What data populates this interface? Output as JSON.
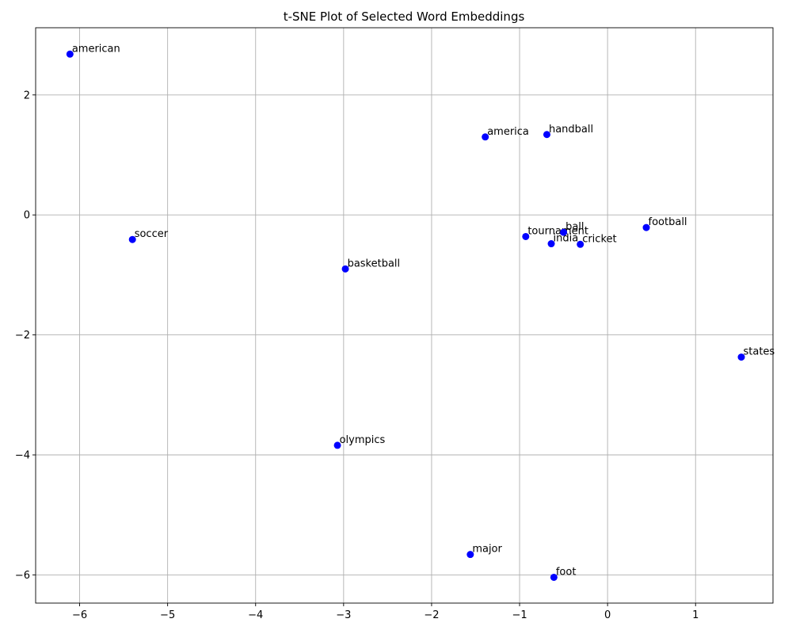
{
  "chart_data": {
    "type": "scatter",
    "title": "t-SNE Plot of Selected Word Embeddings",
    "xlabel": "",
    "ylabel": "",
    "xlim": [
      -6.5,
      1.88
    ],
    "ylim": [
      -6.47,
      3.12
    ],
    "xticks": [
      -6,
      -5,
      -4,
      -3,
      -2,
      -1,
      0,
      1
    ],
    "yticks": [
      -6,
      -4,
      -2,
      0,
      2
    ],
    "xtick_labels": [
      "−6",
      "−5",
      "−4",
      "−3",
      "−2",
      "−1",
      "0",
      "1"
    ],
    "ytick_labels": [
      "−6",
      "−4",
      "−2",
      "0",
      "2"
    ],
    "grid": true,
    "color": "#0000ff",
    "points": [
      {
        "label": "american",
        "x": -6.11,
        "y": 2.68
      },
      {
        "label": "america",
        "x": -1.39,
        "y": 1.3
      },
      {
        "label": "handball",
        "x": -0.69,
        "y": 1.34
      },
      {
        "label": "soccer",
        "x": -5.4,
        "y": -0.41
      },
      {
        "label": "tournament",
        "x": -0.93,
        "y": -0.36
      },
      {
        "label": "ball",
        "x": -0.5,
        "y": -0.29
      },
      {
        "label": "india",
        "x": -0.64,
        "y": -0.48
      },
      {
        "label": "cricket",
        "x": -0.31,
        "y": -0.49
      },
      {
        "label": "football",
        "x": 0.44,
        "y": -0.21
      },
      {
        "label": "basketball",
        "x": -2.98,
        "y": -0.9
      },
      {
        "label": "states",
        "x": 1.52,
        "y": -2.37
      },
      {
        "label": "olympics",
        "x": -3.07,
        "y": -3.84
      },
      {
        "label": "major",
        "x": -1.56,
        "y": -5.66
      },
      {
        "label": "foot",
        "x": -0.61,
        "y": -6.04
      }
    ]
  }
}
